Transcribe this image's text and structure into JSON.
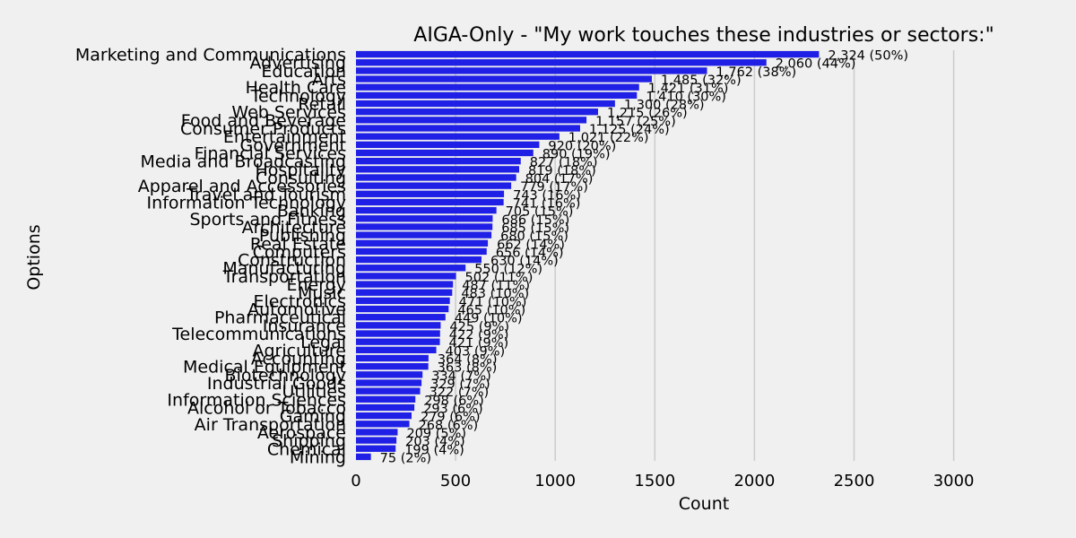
{
  "chart_data": {
    "type": "bar",
    "orientation": "horizontal",
    "title": "AIGA-Only - \"My work touches these industries or sectors:\"",
    "xlabel": "Count",
    "ylabel": "Options",
    "xlim": [
      0,
      3300
    ],
    "xticks": [
      0,
      500,
      1000,
      1500,
      2000,
      2500,
      3000
    ],
    "xtick_labels": [
      "0",
      "500",
      "1000",
      "1500",
      "2000",
      "2500",
      "3000"
    ],
    "grid": "vertical",
    "colors": {
      "bar": "#1f1fe6",
      "grid": "#cbcbcb",
      "background": "#f0f0f0",
      "text": "#000000"
    },
    "categories": [
      "Marketing and Communications",
      "Advertising",
      "Education",
      "Arts",
      "Health Care",
      "Technology",
      "Retail",
      "Web Services",
      "Food and Beverage",
      "Consumer Products",
      "Entertainment",
      "Government",
      "Financial Services",
      "Media and Broadcasting",
      "Hospitality",
      "Consulting",
      "Apparel and Accessories",
      "Travel and Tourism",
      "Information Technology",
      "Banking",
      "Sports and Fitness",
      "Architecture",
      "Publishing",
      "Real Estate",
      "Computers",
      "Construction",
      "Manufacturing",
      "Transportation",
      "Energy",
      "Music",
      "Electronics",
      "Automotive",
      "Pharmaceutical",
      "Insurance",
      "Telecommunications",
      "Legal",
      "Agriculture",
      "Accounting",
      "Medical Equipment",
      "Biotechnology",
      "Industrial Goods",
      "Utilities",
      "Information Sciences",
      "Alcohol or Tobacco",
      "Gaming",
      "Air Transportation",
      "Aerospace",
      "Shipping",
      "Chemical",
      "Mining"
    ],
    "values": [
      2324,
      2060,
      1762,
      1485,
      1421,
      1410,
      1300,
      1215,
      1157,
      1125,
      1021,
      920,
      890,
      827,
      819,
      804,
      779,
      743,
      741,
      705,
      686,
      685,
      680,
      662,
      656,
      630,
      550,
      502,
      487,
      483,
      471,
      465,
      449,
      425,
      422,
      421,
      403,
      364,
      363,
      334,
      329,
      322,
      298,
      293,
      279,
      268,
      209,
      203,
      199,
      75
    ],
    "labels": [
      "2,324 (50%)",
      "2,060 (44%)",
      "1,762 (38%)",
      "1,485 (32%)",
      "1,421 (31%)",
      "1,410 (30%)",
      "1,300 (28%)",
      "1,215 (26%)",
      "1,157 (25%)",
      "1,125 (24%)",
      "1,021 (22%)",
      "920 (20%)",
      "890 (19%)",
      "827 (18%)",
      "819 (18%)",
      "804 (17%)",
      "779 (17%)",
      "743 (16%)",
      "741 (16%)",
      "705 (15%)",
      "686 (15%)",
      "685 (15%)",
      "680 (15%)",
      "662 (14%)",
      "656 (14%)",
      "630 (14%)",
      "550 (12%)",
      "502 (11%)",
      "487 (11%)",
      "483 (10%)",
      "471 (10%)",
      "465 (10%)",
      "449 (10%)",
      "425 (9%)",
      "422 (9%)",
      "421 (9%)",
      "403 (9%)",
      "364 (8%)",
      "363 (8%)",
      "334 (7%)",
      "329 (7%)",
      "322 (7%)",
      "298 (6%)",
      "293 (6%)",
      "279 (6%)",
      "268 (6%)",
      "209 (5%)",
      "203 (4%)",
      "199 (4%)",
      "75 (2%)"
    ]
  }
}
